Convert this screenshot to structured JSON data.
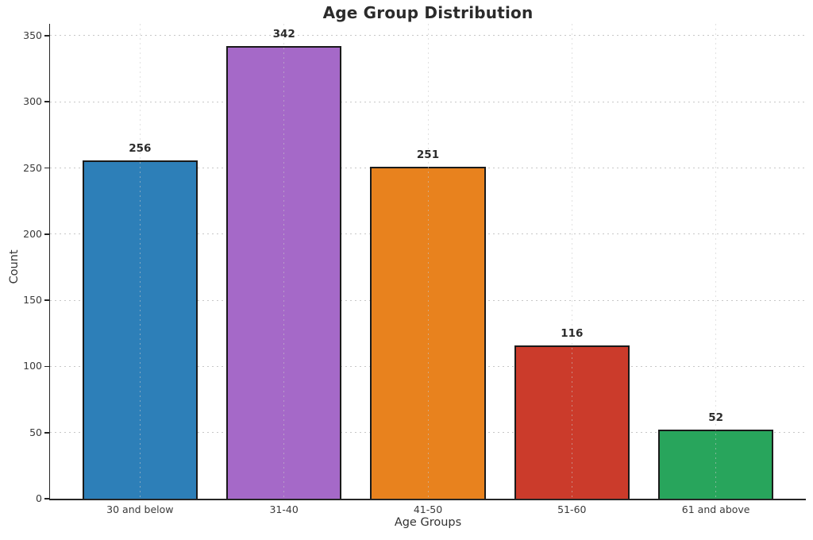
{
  "chart_data": {
    "type": "bar",
    "title": "Age Group Distribution",
    "xlabel": "Age Groups",
    "ylabel": "Count",
    "categories": [
      "30 and below",
      "31-40",
      "41-50",
      "51-60",
      "61 and above"
    ],
    "values": [
      256,
      342,
      251,
      116,
      52
    ],
    "value_labels": [
      "256",
      "342",
      "251",
      "116",
      "52"
    ],
    "bar_colors": [
      "#2d7fb8",
      "#a569c8",
      "#e8821e",
      "#cb3b2b",
      "#28a55c"
    ],
    "bar_edge_color": "#1a1a1a",
    "ylim": [
      0,
      359
    ],
    "yticks": [
      0,
      50,
      100,
      150,
      200,
      250,
      300,
      350
    ],
    "grid": "both-dashed",
    "legend": "none",
    "background": "#ffffff",
    "text_color": "#2b2b2b"
  }
}
